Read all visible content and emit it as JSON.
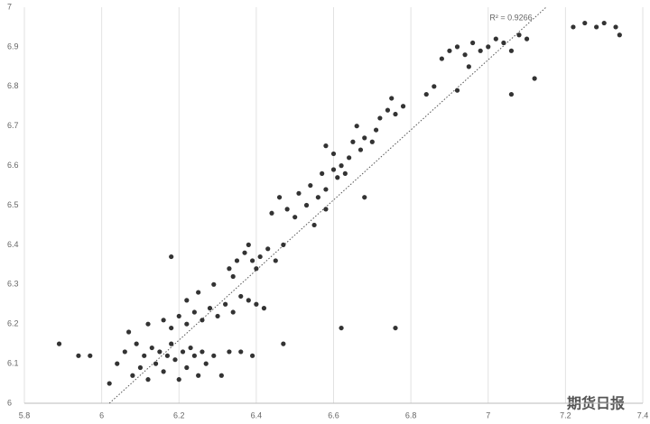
{
  "chart_data": {
    "type": "scatter",
    "annotation": "R² = 0.9266",
    "watermark": "期货日报",
    "color": "#333333",
    "grid": "x",
    "xlim": [
      5.8,
      7.4
    ],
    "xticks": [
      5.8,
      6,
      6.2,
      6.4,
      6.6,
      6.8,
      7,
      7.2,
      7.4
    ],
    "ylim": [
      6,
      7
    ],
    "yticks": [
      6,
      6.1,
      6.2,
      6.3,
      6.4,
      6.5,
      6.6,
      6.7,
      6.8,
      6.9,
      7
    ],
    "trendline": {
      "x": [
        6.02,
        7.15
      ],
      "y": [
        6,
        7
      ]
    },
    "x": [
      5.89,
      5.94,
      5.97,
      6.02,
      6.04,
      6.06,
      6.08,
      6.09,
      6.1,
      6.11,
      6.12,
      6.13,
      6.14,
      6.15,
      6.16,
      6.17,
      6.18,
      6.19,
      6.2,
      6.21,
      6.22,
      6.23,
      6.24,
      6.25,
      6.26,
      6.27,
      6.29,
      6.31,
      6.33,
      6.36,
      6.39,
      6.07,
      6.12,
      6.16,
      6.18,
      6.2,
      6.22,
      6.24,
      6.26,
      6.28,
      6.3,
      6.32,
      6.34,
      6.36,
      6.38,
      6.4,
      6.42,
      6.22,
      6.25,
      6.29,
      6.33,
      6.35,
      6.37,
      6.39,
      6.41,
      6.43,
      6.45,
      6.47,
      6.4,
      6.38,
      6.34,
      6.47,
      6.18,
      6.44,
      6.46,
      6.48,
      6.5,
      6.51,
      6.53,
      6.54,
      6.56,
      6.57,
      6.58,
      6.6,
      6.61,
      6.62,
      6.63,
      6.64,
      6.6,
      6.58,
      6.65,
      6.67,
      6.68,
      6.7,
      6.71,
      6.66,
      6.72,
      6.74,
      6.76,
      6.78,
      6.75,
      6.62,
      6.76,
      6.84,
      6.86,
      6.88,
      6.9,
      6.92,
      6.94,
      6.96,
      6.98,
      7.0,
      7.02,
      7.04,
      7.06,
      7.08,
      7.1,
      6.95,
      6.92,
      7.12,
      7.06,
      7.22,
      7.25,
      7.28,
      7.3,
      7.34,
      7.33,
      6.58,
      6.55,
      6.68
    ],
    "y": [
      6.15,
      6.12,
      6.12,
      6.05,
      6.1,
      6.13,
      6.07,
      6.15,
      6.09,
      6.12,
      6.06,
      6.14,
      6.1,
      6.13,
      6.08,
      6.12,
      6.15,
      6.11,
      6.06,
      6.13,
      6.09,
      6.14,
      6.12,
      6.07,
      6.13,
      6.1,
      6.12,
      6.07,
      6.13,
      6.13,
      6.12,
      6.18,
      6.2,
      6.21,
      6.19,
      6.22,
      6.2,
      6.23,
      6.21,
      6.24,
      6.22,
      6.25,
      6.23,
      6.27,
      6.26,
      6.25,
      6.24,
      6.26,
      6.28,
      6.3,
      6.34,
      6.36,
      6.38,
      6.36,
      6.37,
      6.39,
      6.36,
      6.4,
      6.34,
      6.4,
      6.32,
      6.15,
      6.37,
      6.48,
      6.52,
      6.49,
      6.47,
      6.53,
      6.5,
      6.55,
      6.52,
      6.58,
      6.54,
      6.59,
      6.57,
      6.6,
      6.58,
      6.62,
      6.63,
      6.65,
      6.66,
      6.64,
      6.67,
      6.66,
      6.69,
      6.7,
      6.72,
      6.74,
      6.73,
      6.75,
      6.77,
      6.19,
      6.19,
      6.78,
      6.8,
      6.87,
      6.89,
      6.9,
      6.88,
      6.91,
      6.89,
      6.9,
      6.92,
      6.91,
      6.89,
      6.93,
      6.92,
      6.85,
      6.79,
      6.82,
      6.78,
      6.95,
      6.96,
      6.95,
      6.96,
      6.93,
      6.95,
      6.49,
      6.45,
      6.52
    ]
  }
}
